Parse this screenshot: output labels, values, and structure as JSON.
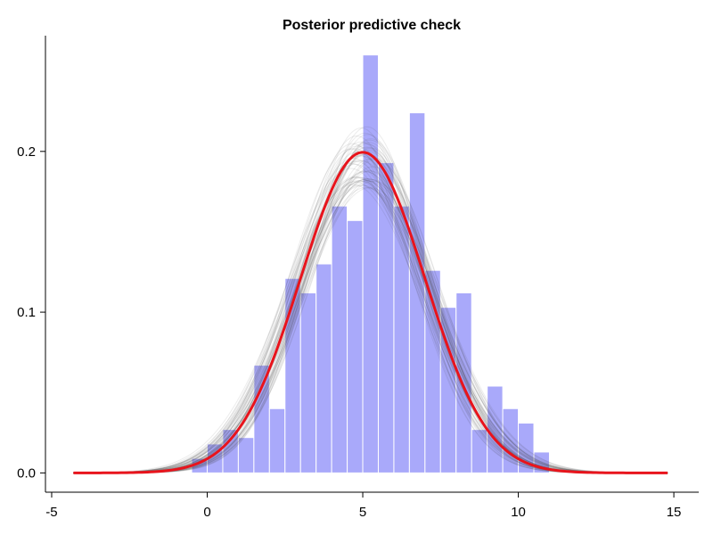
{
  "chart_data": {
    "type": "bar",
    "title": "Posterior predictive check",
    "xlabel": "",
    "ylabel": "",
    "xlim": [
      -5.2,
      15.8
    ],
    "ylim": [
      -0.012,
      0.272
    ],
    "x_ticks": [
      -5,
      0,
      5,
      10,
      15
    ],
    "x_tick_labels": [
      "-5",
      "0",
      "5",
      "10",
      "15"
    ],
    "y_ticks": [
      0.0,
      0.1,
      0.2
    ],
    "y_tick_labels": [
      "0.0",
      "0.1",
      "0.2"
    ],
    "grid": false,
    "legend": "none",
    "histogram": {
      "bin_width": 0.5,
      "bin_starts": [
        -0.5,
        0.0,
        0.5,
        1.0,
        1.5,
        2.0,
        2.5,
        3.0,
        3.5,
        4.0,
        4.5,
        5.0,
        5.5,
        6.0,
        6.5,
        7.0,
        7.5,
        8.0,
        8.5,
        9.0,
        9.5,
        10.0,
        10.5
      ],
      "values": [
        0.009,
        0.018,
        0.027,
        0.022,
        0.067,
        0.04,
        0.121,
        0.112,
        0.13,
        0.166,
        0.157,
        0.26,
        0.193,
        0.166,
        0.224,
        0.126,
        0.103,
        0.112,
        0.027,
        0.054,
        0.04,
        0.031,
        0.013
      ]
    },
    "density_curve": {
      "x_range": [
        -4.3,
        14.8
      ],
      "mean": 5.0,
      "sd": 2.0
    },
    "posterior_draws": {
      "x_range": [
        -4.3,
        14.8
      ],
      "count": 60,
      "mean_range": [
        4.6,
        5.4
      ],
      "sd_range": [
        1.85,
        2.25
      ]
    },
    "colors": {
      "histogram_fill": "#a9a9fa",
      "histogram_stroke": "#ffffff",
      "density_curve": "#e8141c",
      "posterior_draws": "#404040",
      "axis": "#000000"
    }
  }
}
